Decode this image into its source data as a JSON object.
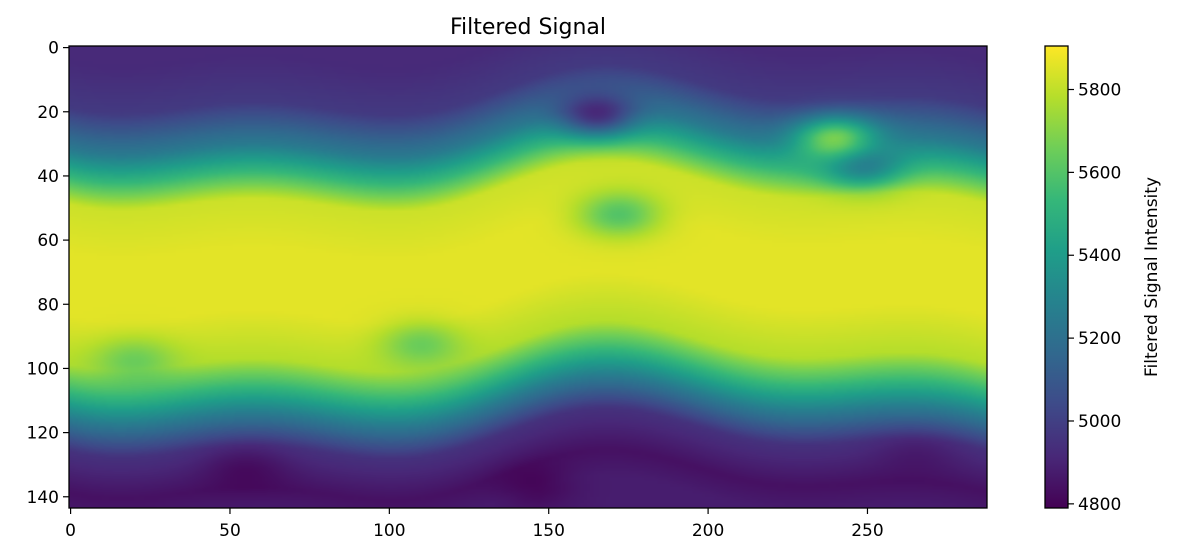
{
  "chart_data": {
    "type": "heatmap",
    "title": "Filtered Signal",
    "xlabel": "",
    "ylabel": "",
    "colorbar_label": "Filtered Signal Intensity",
    "x_ticks": [
      0,
      50,
      100,
      150,
      200,
      250
    ],
    "y_ticks": [
      0,
      20,
      40,
      60,
      80,
      100,
      120,
      140
    ],
    "colorbar_ticks": [
      4800,
      5000,
      5200,
      5400,
      5600,
      5800
    ],
    "xlim": [
      -0.5,
      287.5
    ],
    "ylim": [
      143.5,
      -0.5
    ],
    "clim": [
      4790,
      5905
    ],
    "colormap": "viridis",
    "grid": false,
    "colorbar_position": "right",
    "columns": 288,
    "rows": 144,
    "description_of_field": "smooth 2D field: bright band (~5800-5900) across rows 45-100, mid values (~5300-5600) at rows 30-45 and 100-115, low values (~4800-5000) near rows 0-20 and 120-143",
    "features": [
      {
        "x": 165,
        "y": 22,
        "value": 4950
      },
      {
        "x": 248,
        "y": 38,
        "value": 5250
      },
      {
        "x": 240,
        "y": 28,
        "value": 5700
      },
      {
        "x": 172,
        "y": 52,
        "value": 5600
      },
      {
        "x": 110,
        "y": 92,
        "value": 5650
      },
      {
        "x": 20,
        "y": 97,
        "value": 5650
      },
      {
        "x": 55,
        "y": 130,
        "value": 4830
      },
      {
        "x": 145,
        "y": 137,
        "value": 4810
      },
      {
        "x": 265,
        "y": 125,
        "value": 4880
      }
    ]
  }
}
